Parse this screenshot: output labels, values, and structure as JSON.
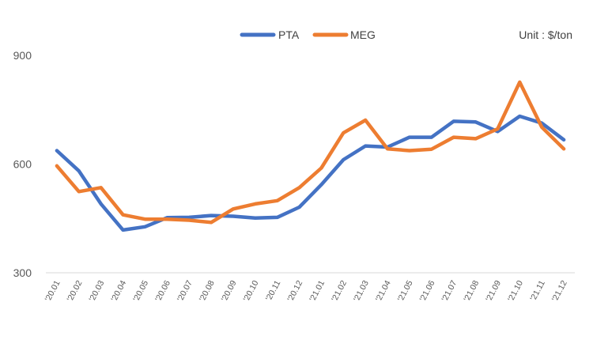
{
  "chart_data": {
    "type": "line",
    "unit_label": "Unit : $/ton",
    "categories": [
      "'20.01",
      "'20.02",
      "'20.03",
      "'20.04",
      "'20.05",
      "'20.06",
      "'20.07",
      "'20.08",
      "'20.09",
      "'20.10",
      "'20.11",
      "'20.12",
      "'21.01",
      "'21.02",
      "'21.03",
      "'21.04",
      "'21.05",
      "'21.06",
      "'21.07",
      "'21.08",
      "'21.09",
      "'21.10",
      "'21.11",
      "'21.12"
    ],
    "yticks": [
      300,
      600,
      900
    ],
    "ylim": [
      300,
      900
    ],
    "grid": false,
    "legend_position": "top-center",
    "series": [
      {
        "name": "PTA",
        "color": "#4472C4",
        "values": [
          637,
          581,
          490,
          418,
          427,
          452,
          453,
          458,
          456,
          451,
          453,
          481,
          543,
          612,
          650,
          647,
          674,
          674,
          718,
          716,
          690,
          732,
          713,
          667
        ]
      },
      {
        "name": "MEG",
        "color": "#ED7D31",
        "values": [
          595,
          524,
          535,
          460,
          448,
          448,
          445,
          439,
          476,
          490,
          499,
          535,
          589,
          686,
          721,
          642,
          637,
          641,
          674,
          670,
          697,
          826,
          702,
          642
        ]
      }
    ]
  }
}
